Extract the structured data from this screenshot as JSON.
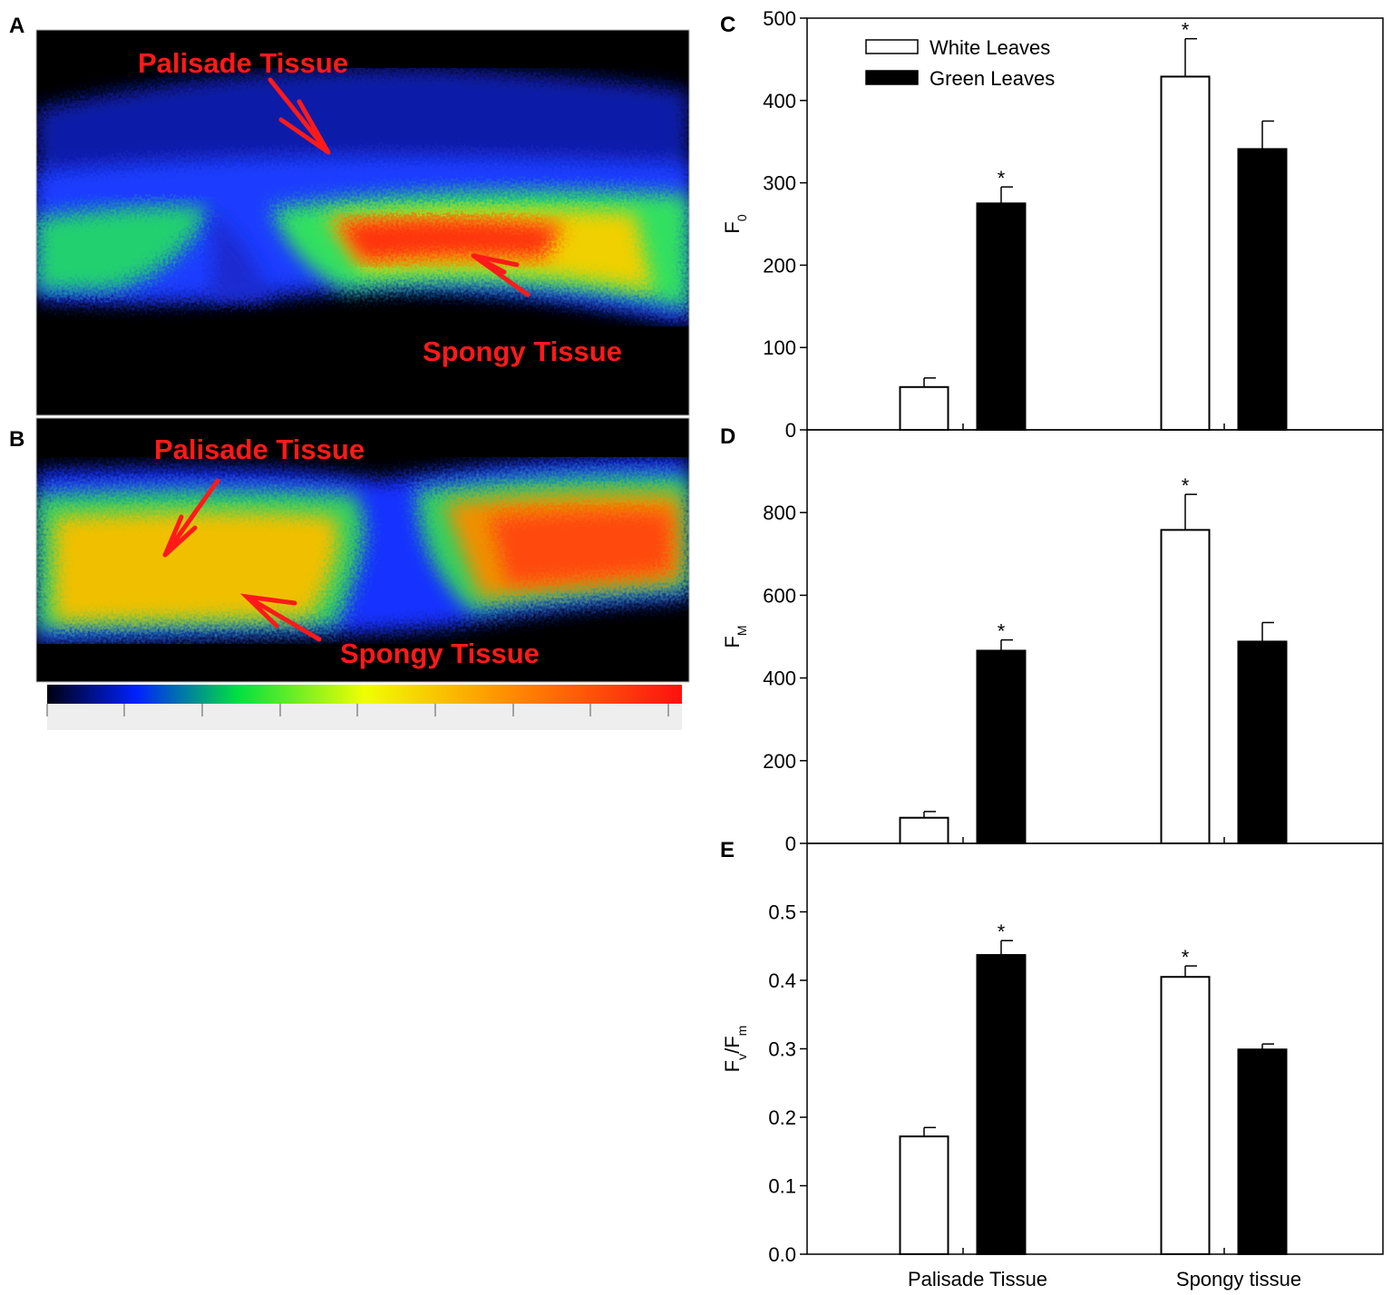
{
  "panels": {
    "A": {
      "label": "A",
      "annotations": [
        "Palisade Tissue",
        "Spongy Tissue"
      ]
    },
    "B": {
      "label": "B",
      "annotations": [
        "Palisade Tissue",
        "Spongy Tissue"
      ]
    }
  },
  "chart_data": [
    {
      "type": "bar",
      "panel_label": "C",
      "ylabel": [
        {
          "text": "F"
        },
        {
          "text": "0",
          "sub": true
        }
      ],
      "categories": [
        null,
        null
      ],
      "series": [
        {
          "name": "White Leaves",
          "color": "#ffffff",
          "values": [
            52,
            429
          ],
          "errors": [
            11,
            46
          ],
          "markers": [
            null,
            "*"
          ]
        },
        {
          "name": "Green Leaves",
          "color": "#000000",
          "values": [
            275,
            341
          ],
          "errors": [
            20,
            34
          ],
          "markers": [
            "*",
            null
          ]
        }
      ],
      "ylim": [
        0,
        500
      ],
      "yticks": [
        0,
        100,
        200,
        300,
        400,
        500
      ],
      "legend": "top-left"
    },
    {
      "type": "bar",
      "panel_label": "D",
      "ylabel": [
        {
          "text": "F"
        },
        {
          "text": "M",
          "sub": true
        }
      ],
      "categories": [
        null,
        null
      ],
      "series": [
        {
          "color": "#ffffff",
          "values": [
            62,
            758
          ],
          "errors": [
            15,
            86
          ],
          "markers": [
            null,
            "*"
          ]
        },
        {
          "color": "#000000",
          "values": [
            466,
            488
          ],
          "errors": [
            26,
            46
          ],
          "markers": [
            "*",
            null
          ]
        }
      ],
      "ylim": [
        0,
        1000
      ],
      "yticks": [
        0,
        200,
        400,
        600,
        800
      ]
    },
    {
      "type": "bar",
      "panel_label": "E",
      "ylabel": [
        {
          "text": "F"
        },
        {
          "text": "v",
          "sub": true
        },
        {
          "text": "/F"
        },
        {
          "text": "m",
          "sub": true
        }
      ],
      "categories": [
        "Palisade Tissue",
        "Spongy tissue"
      ],
      "series": [
        {
          "color": "#ffffff",
          "values": [
            0.172,
            0.405
          ],
          "errors": [
            0.013,
            0.016
          ],
          "markers": [
            null,
            "*"
          ]
        },
        {
          "color": "#000000",
          "values": [
            0.437,
            0.299
          ],
          "errors": [
            0.021,
            0.008
          ],
          "markers": [
            "*",
            null
          ]
        }
      ],
      "ylim": [
        0,
        0.6
      ],
      "yticks": [
        {
          "value": 0,
          "label": "0.0"
        },
        0.1,
        0.2,
        0.3,
        0.4,
        0.5
      ]
    }
  ]
}
